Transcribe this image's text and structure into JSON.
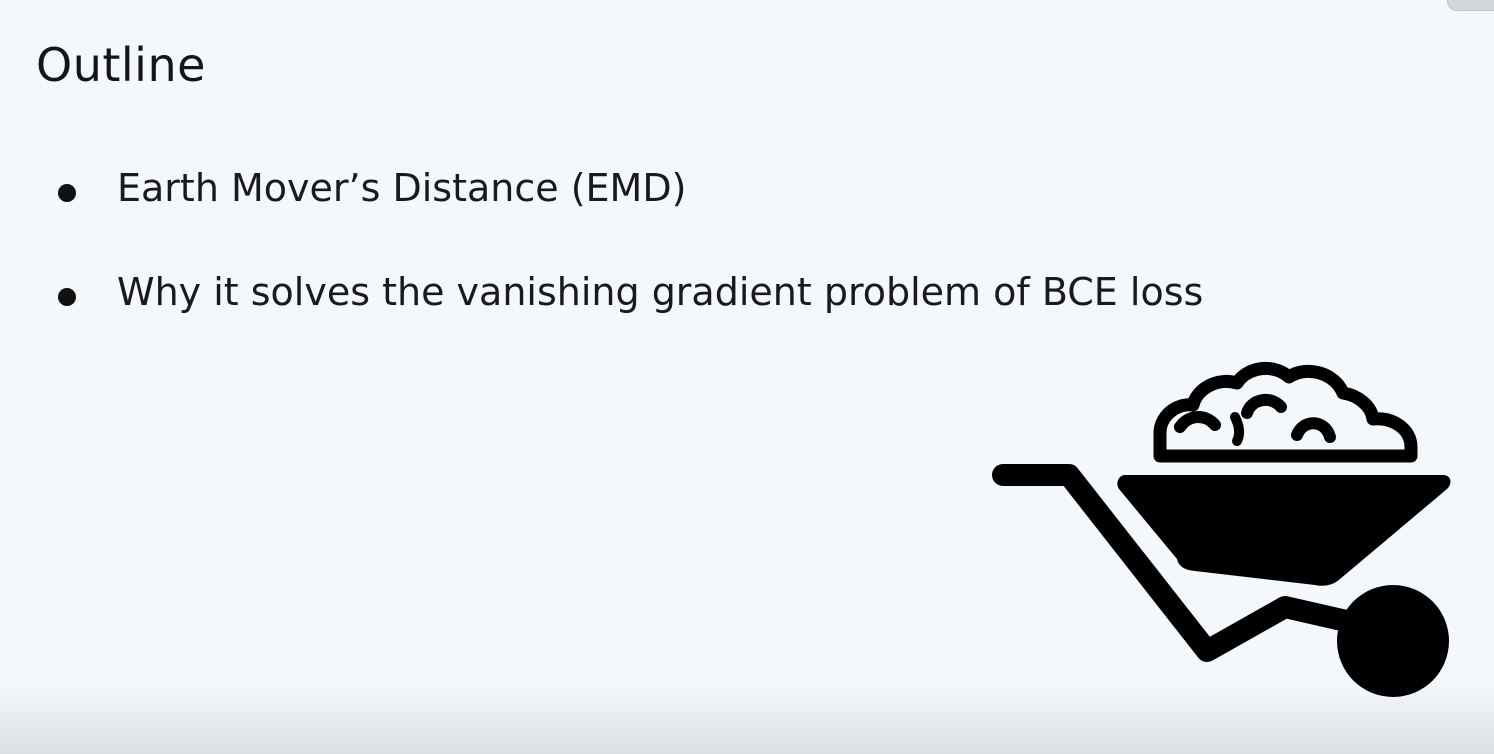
{
  "slide": {
    "title": "Outline",
    "bullets": [
      {
        "text": "Earth Mover’s Distance (EMD)"
      },
      {
        "text": "Why it solves the vanishing gradient problem of BCE loss"
      }
    ]
  },
  "illustration": {
    "icon": "wheelbarrow-icon",
    "color": "#000000"
  },
  "colors": {
    "background": "#f4f7fc",
    "text": "#1a1a1a"
  }
}
